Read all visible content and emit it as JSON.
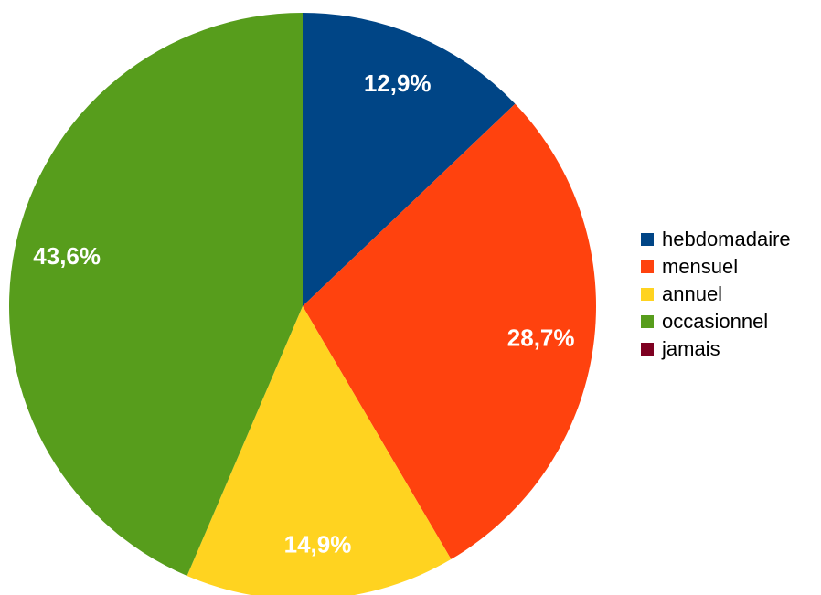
{
  "chart_data": {
    "type": "pie",
    "categories": [
      "hebdomadaire",
      "mensuel",
      "annuel",
      "occasionnel",
      "jamais"
    ],
    "values": [
      12.9,
      28.7,
      14.9,
      43.6,
      0
    ],
    "value_labels": [
      "12,9%",
      "28,7%",
      "14,9%",
      "43,6%",
      ""
    ],
    "colors": [
      "#004586",
      "#ff420e",
      "#ffd320",
      "#579d1c",
      "#7e0021"
    ],
    "start_angle_deg": 0,
    "direction": "clockwise",
    "legend_position": "right"
  }
}
